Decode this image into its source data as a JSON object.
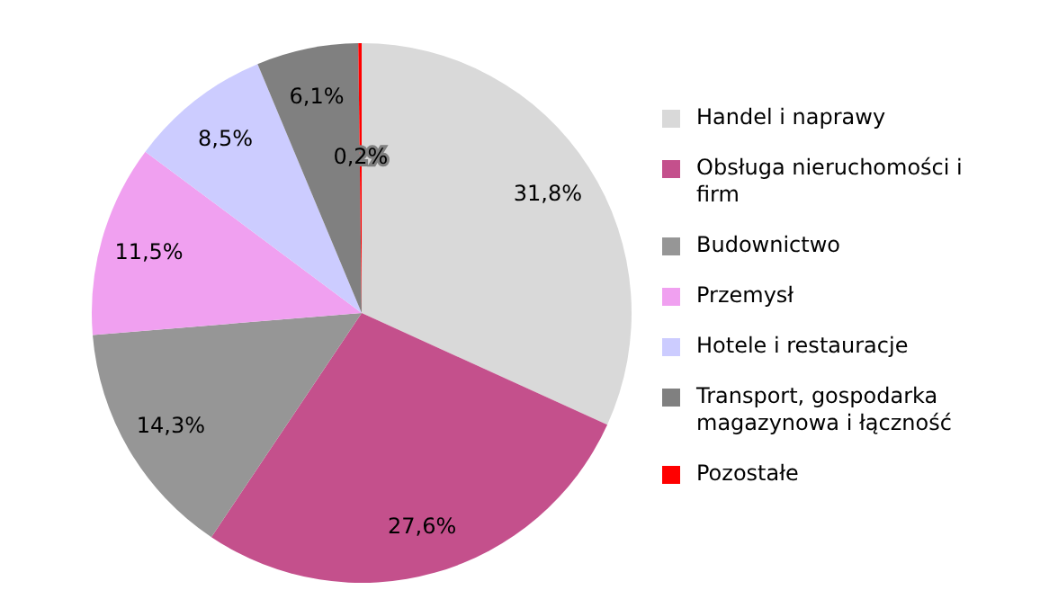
{
  "chart_data": {
    "type": "pie",
    "categories": [
      "Handel i naprawy",
      "Obsługa nieruchomości i firm",
      "Budownictwo",
      "Przemysł",
      "Hotele i restauracje",
      "Transport, gospodarka magazynowa i łączność",
      "Pozostałe"
    ],
    "values": [
      31.8,
      27.6,
      14.3,
      11.5,
      8.5,
      6.1,
      0.2
    ],
    "colors": [
      "#d9d9d9",
      "#c4508c",
      "#969696",
      "#f0a0f0",
      "#ccccff",
      "#808080",
      "#ff0000"
    ],
    "value_labels": [
      "31,8%",
      "27,6%",
      "14,3%",
      "11,5%",
      "8,5%",
      "6,1%",
      "0,2%"
    ],
    "legend": "right"
  }
}
